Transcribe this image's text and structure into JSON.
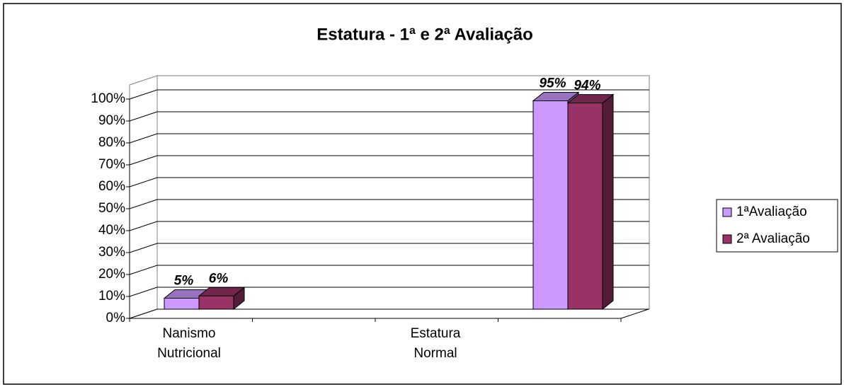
{
  "chart_data": {
    "type": "bar3d",
    "title": "Estatura - 1ª e 2ª Avaliação",
    "categories": [
      "Nanismo Nutricional",
      "Estatura Normal"
    ],
    "series": [
      {
        "name": "1ªAvaliação",
        "color": "#cc99ff",
        "values": [
          5,
          95
        ],
        "value_labels": [
          "5%",
          "95%"
        ]
      },
      {
        "name": "2ª Avaliação",
        "color": "#993366",
        "values": [
          6,
          94
        ],
        "value_labels": [
          "6%",
          "94%"
        ]
      }
    ],
    "ylim": [
      0,
      100
    ],
    "yticks": [
      {
        "value": 0,
        "label": "0%"
      },
      {
        "value": 10,
        "label": "10%"
      },
      {
        "value": 20,
        "label": "20%"
      },
      {
        "value": 30,
        "label": "30%"
      },
      {
        "value": 40,
        "label": "40%"
      },
      {
        "value": 50,
        "label": "50%"
      },
      {
        "value": 60,
        "label": "60%"
      },
      {
        "value": 70,
        "label": "70%"
      },
      {
        "value": 80,
        "label": "80%"
      },
      {
        "value": 90,
        "label": "90%"
      },
      {
        "value": 100,
        "label": "100%"
      }
    ],
    "grid": true,
    "legend": "right"
  }
}
